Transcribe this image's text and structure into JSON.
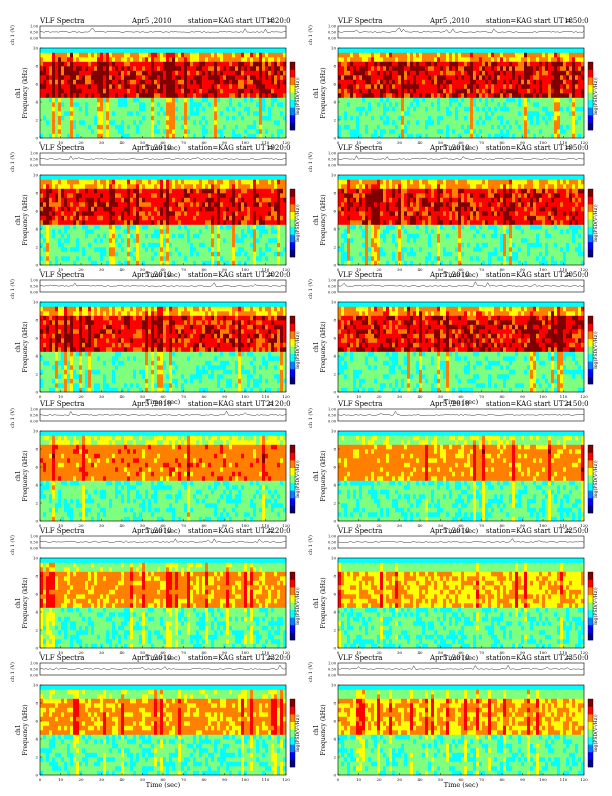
{
  "common": {
    "title": "VLF Spectra",
    "date": "Apr5 ,2010",
    "station": "station=KAG",
    "start_prefix": "start  UT =",
    "ch1_label": "ch 1 (V)",
    "ylabel_line1": "ch1",
    "ylabel_line2": "Frequency  (kHz)",
    "xlabel": "Time  (sec)",
    "cbar_label": "log(PSD(V²/Hz))",
    "x_ticks": [
      "0",
      "10",
      "20",
      "30",
      "40",
      "50",
      "60",
      "70",
      "80",
      "90",
      "100",
      "110",
      "120"
    ],
    "y_ticks": [
      "0",
      "2",
      "4",
      "6",
      "8",
      "10"
    ],
    "ts_ticks": [
      "0.00",
      "0.50",
      "1.00"
    ]
  },
  "colors": {
    "jet": [
      "#00007f",
      "#0000ff",
      "#007fff",
      "#00ffff",
      "#7fff7f",
      "#ffff00",
      "#ff7f00",
      "#ff0000",
      "#7f0000"
    ]
  },
  "chart_data": [
    {
      "type": "heatmap",
      "start_ut": "1820:0",
      "xlim": [
        0,
        120
      ],
      "ylim": [
        0,
        10
      ],
      "intensity": 0.85,
      "seed": 11
    },
    {
      "type": "heatmap",
      "start_ut": "1850:0",
      "xlim": [
        0,
        120
      ],
      "ylim": [
        0,
        10
      ],
      "intensity": 0.85,
      "seed": 23
    },
    {
      "type": "heatmap",
      "start_ut": "1920:0",
      "xlim": [
        0,
        120
      ],
      "ylim": [
        0,
        10
      ],
      "intensity": 0.8,
      "seed": 37
    },
    {
      "type": "heatmap",
      "start_ut": "1950:0",
      "xlim": [
        0,
        120
      ],
      "ylim": [
        0,
        10
      ],
      "intensity": 0.8,
      "seed": 41
    },
    {
      "type": "heatmap",
      "start_ut": "2020:0",
      "xlim": [
        0,
        120
      ],
      "ylim": [
        0,
        10
      ],
      "intensity": 0.8,
      "seed": 53
    },
    {
      "type": "heatmap",
      "start_ut": "2050:0",
      "xlim": [
        0,
        120
      ],
      "ylim": [
        0,
        10
      ],
      "intensity": 0.85,
      "seed": 67
    },
    {
      "type": "heatmap",
      "start_ut": "2120:0",
      "xlim": [
        0,
        120
      ],
      "ylim": [
        0,
        10
      ],
      "intensity": 0.55,
      "seed": 71
    },
    {
      "type": "heatmap",
      "start_ut": "2150:0",
      "xlim": [
        0,
        120
      ],
      "ylim": [
        0,
        10
      ],
      "intensity": 0.5,
      "seed": 83
    },
    {
      "type": "heatmap",
      "start_ut": "2220:0",
      "xlim": [
        0,
        120
      ],
      "ylim": [
        0,
        10
      ],
      "intensity": 0.45,
      "seed": 97
    },
    {
      "type": "heatmap",
      "start_ut": "2250:0",
      "xlim": [
        0,
        120
      ],
      "ylim": [
        0,
        10
      ],
      "intensity": 0.4,
      "seed": 101
    },
    {
      "type": "heatmap",
      "start_ut": "2320:0",
      "xlim": [
        0,
        120
      ],
      "ylim": [
        0,
        10
      ],
      "intensity": 0.45,
      "seed": 113
    },
    {
      "type": "heatmap",
      "start_ut": "2350:0",
      "xlim": [
        0,
        120
      ],
      "ylim": [
        0,
        10
      ],
      "intensity": 0.4,
      "seed": 127
    }
  ]
}
